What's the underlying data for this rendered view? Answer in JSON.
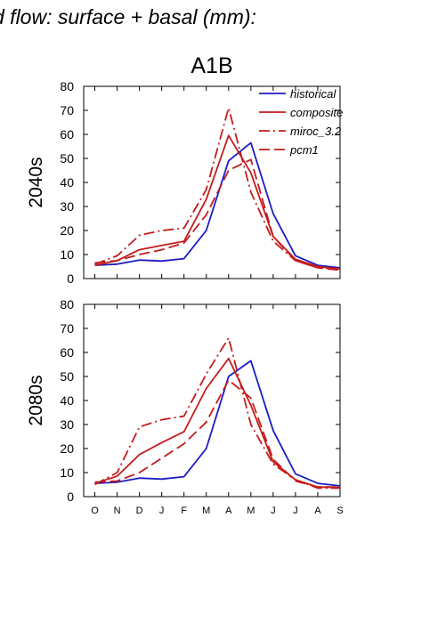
{
  "page_title": "d flow: surface + basal (mm):",
  "chart_data": {
    "type": "line",
    "figure_title": "A1B",
    "colors": {
      "historical": "#1c1cc4",
      "scenario": "#c41c1c"
    },
    "legend_position": "top-right",
    "categories": [
      "O",
      "N",
      "D",
      "J",
      "F",
      "M",
      "A",
      "M",
      "J",
      "J",
      "A",
      "S"
    ],
    "panels": [
      {
        "row_label": "2040s",
        "ylim": [
          0,
          80
        ],
        "yticks": [
          0,
          10,
          20,
          30,
          40,
          50,
          60,
          70,
          80
        ],
        "series": [
          {
            "name": "historical",
            "style": "solid",
            "color": "#1c1cc4",
            "values": [
              5.5,
              6,
              7.7,
              7.3,
              8.3,
              20,
              49,
              56.5,
              27,
              9.5,
              5.5,
              4.5
            ]
          },
          {
            "name": "composite",
            "style": "solid",
            "color": "#c41c1c",
            "values": [
              5.5,
              7.5,
              12,
              13.8,
              15.5,
              33,
              59.5,
              44,
              17.5,
              8,
              5,
              4
            ]
          },
          {
            "name": "miroc_3.2",
            "style": "dashdot",
            "color": "#c41c1c",
            "values": [
              6,
              9.5,
              18,
              20,
              21,
              37,
              71,
              36,
              15.5,
              7.5,
              4.5,
              4
            ]
          },
          {
            "name": "pcm1",
            "style": "dash",
            "color": "#c41c1c",
            "values": [
              6.5,
              7.5,
              10,
              12,
              14.8,
              26.5,
              45,
              49.5,
              17.5,
              7.5,
              4.5,
              3.5
            ]
          }
        ]
      },
      {
        "row_label": "2080s",
        "ylim": [
          0,
          80
        ],
        "yticks": [
          0,
          10,
          20,
          30,
          40,
          50,
          60,
          70,
          80
        ],
        "series": [
          {
            "name": "historical",
            "style": "solid",
            "color": "#1c1cc4",
            "values": [
              5.5,
              6,
              7.7,
              7.3,
              8.3,
              20,
              50,
              56.5,
              27.5,
              9.5,
              5.5,
              4.5
            ]
          },
          {
            "name": "composite",
            "style": "solid",
            "color": "#c41c1c",
            "values": [
              5.5,
              8.5,
              17.5,
              22.5,
              27,
              45,
              57.5,
              38,
              14.5,
              7,
              4,
              3.8
            ]
          },
          {
            "name": "miroc_3.2",
            "style": "dashdot",
            "color": "#c41c1c",
            "values": [
              5,
              10,
              29,
              32,
              33.5,
              51,
              66,
              30,
              13.5,
              7,
              3.5,
              3.5
            ]
          },
          {
            "name": "pcm1",
            "style": "dash",
            "color": "#c41c1c",
            "values": [
              6,
              6.5,
              10,
              16,
              22,
              31,
              48.5,
              41,
              15.5,
              6.5,
              4,
              4
            ]
          }
        ]
      }
    ]
  }
}
